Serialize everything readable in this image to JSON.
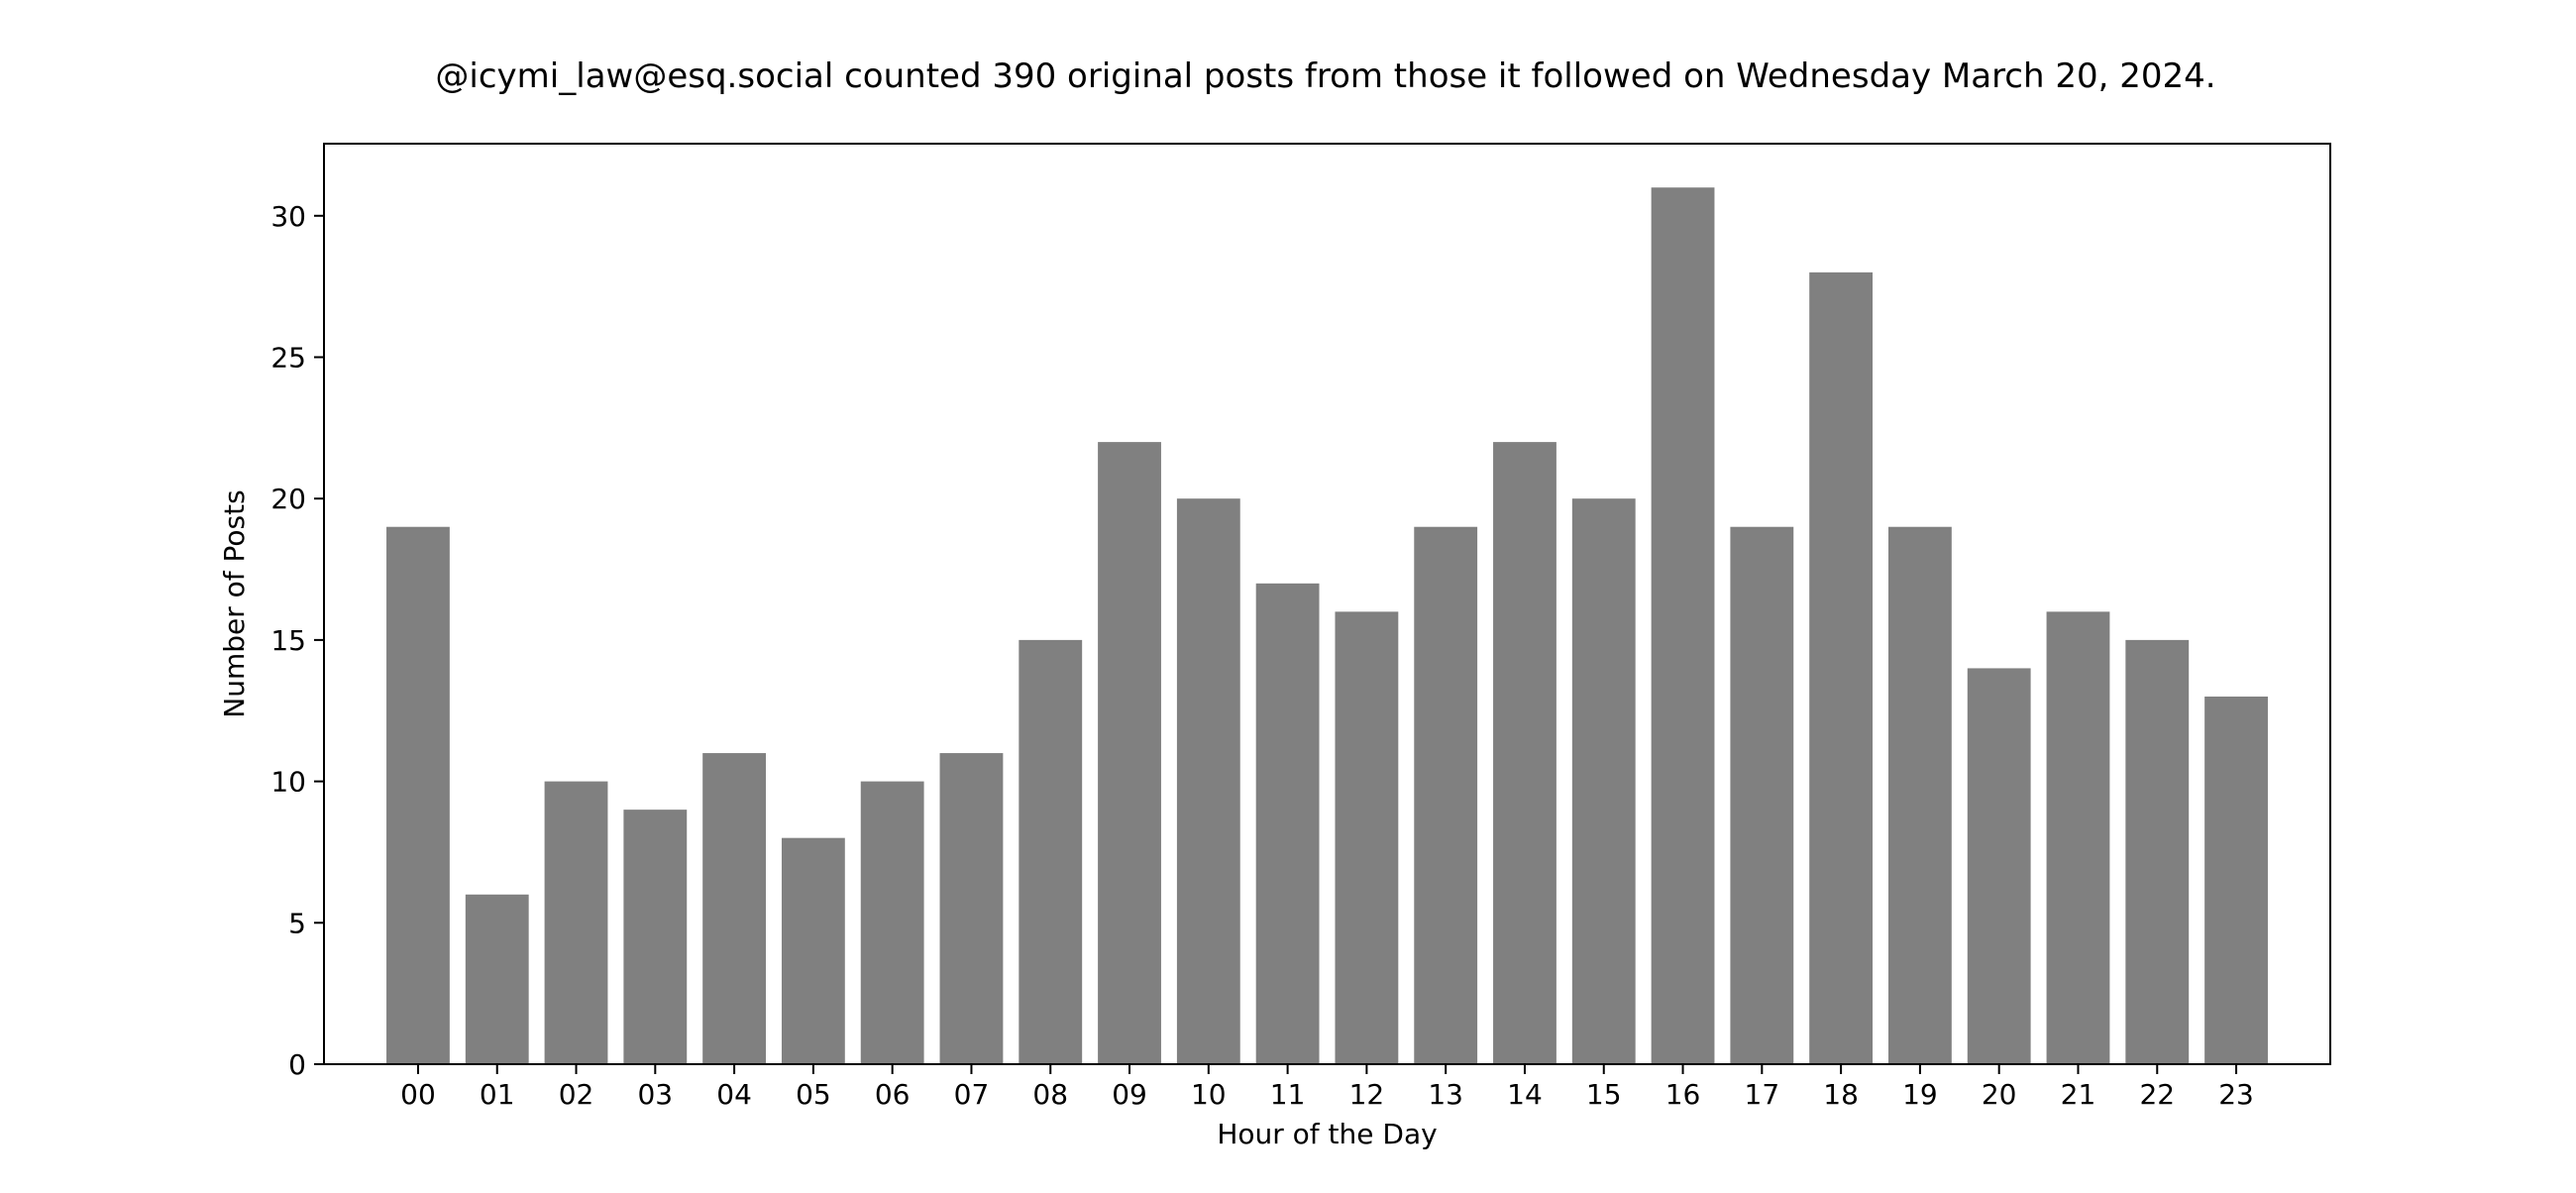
{
  "chart_data": {
    "type": "bar",
    "title": "@icymi_law@esq.social counted 390 original posts from those it followed on Wednesday March 20, 2024.",
    "xlabel": "Hour of the Day",
    "ylabel": "Number of Posts",
    "categories": [
      "00",
      "01",
      "02",
      "03",
      "04",
      "05",
      "06",
      "07",
      "08",
      "09",
      "10",
      "11",
      "12",
      "13",
      "14",
      "15",
      "16",
      "17",
      "18",
      "19",
      "20",
      "21",
      "22",
      "23"
    ],
    "values": [
      19,
      6,
      10,
      9,
      11,
      8,
      10,
      11,
      15,
      22,
      20,
      17,
      16,
      19,
      22,
      20,
      31,
      19,
      28,
      19,
      14,
      16,
      15,
      13
    ],
    "ylim": [
      0,
      32.55
    ],
    "yticks": [
      0,
      5,
      10,
      15,
      20,
      25,
      30
    ],
    "grid": false,
    "legend": "none",
    "bar_color": "#808080",
    "axis_color": "#000000"
  }
}
